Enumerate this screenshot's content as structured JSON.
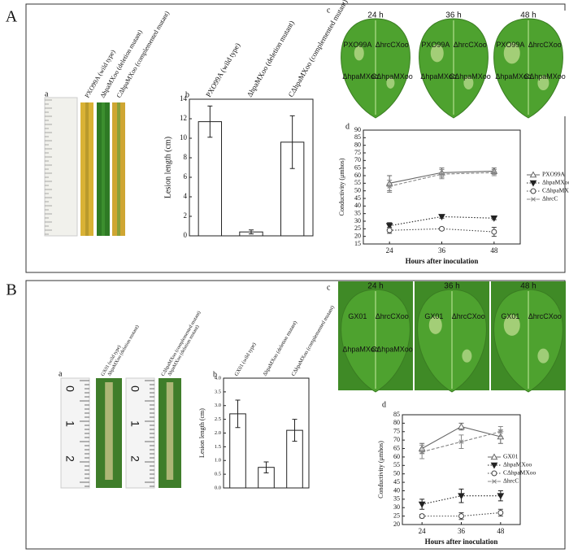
{
  "figure": {
    "panels": [
      {
        "label": "A",
        "photo_a": {
          "label": "a",
          "strains": [
            "PXO99A (wild type)",
            "ΔhpaMXoo (deletion mutant)",
            "CΔhpaMXoo (complemented mutant)"
          ]
        },
        "photo_c": {
          "label": "c",
          "times": [
            "24 h",
            "36 h",
            "48 h"
          ],
          "sites": [
            "PXO99A",
            "ΔhrcCXoo",
            "ΔhpaMXoo",
            "CΔhpaMXoo"
          ]
        }
      },
      {
        "label": "B",
        "photo_a": {
          "label": "a",
          "strains": [
            "GX01 (wild type)",
            "ΔhpaMXoo (deletion mutant)",
            "CΔhpaMXoo (complemented mutant)"
          ],
          "ruler": [
            "0",
            "1",
            "2"
          ]
        },
        "photo_c": {
          "label": "c",
          "times": [
            "24 h",
            "36 h",
            "48 h"
          ],
          "sites": [
            "GX01",
            "ΔhrcCXoo",
            "ΔhpaMXoo",
            "CΔhpaMXoo"
          ]
        }
      }
    ]
  },
  "chart_data": [
    {
      "type": "bar",
      "label": "b",
      "categories": [
        "PXO99A (wild type)",
        "ΔhpaMXoo (deletion mutant)",
        "CΔhpaMXoo (complemented mutant)"
      ],
      "values": [
        11.7,
        0.4,
        9.6
      ],
      "errors": [
        1.6,
        0.2,
        2.7
      ],
      "color": "#ffffff",
      "ylabel": "Lesion length (cm)",
      "ylim": [
        0,
        14
      ],
      "yticks": [
        0,
        2,
        4,
        6,
        8,
        10,
        12,
        14
      ]
    },
    {
      "type": "line",
      "label": "d",
      "xlabel": "Hours after inoculation",
      "ylabel": "Conductivity (μmhos)",
      "x": [
        24,
        36,
        48
      ],
      "xlim": [
        18,
        54
      ],
      "xticks": [
        24,
        36,
        48
      ],
      "ylim": [
        15,
        90
      ],
      "yticks": [
        15,
        20,
        25,
        30,
        35,
        40,
        45,
        50,
        55,
        60,
        65,
        70,
        75,
        80,
        85,
        90
      ],
      "legend": "right",
      "series": [
        {
          "name": "PXO99A",
          "color": "#666666",
          "marker": "triangle-open",
          "dash": "solid",
          "values": [
            55,
            62,
            63
          ],
          "errors": [
            5,
            3,
            2
          ]
        },
        {
          "name": "ΔhpaMXoo",
          "color": "#222222",
          "marker": "triangle-down",
          "dash": "dotted",
          "values": [
            27,
            33,
            32
          ],
          "errors": [
            2,
            1,
            1
          ]
        },
        {
          "name": "CΔhpaMXoo",
          "color": "#444444",
          "marker": "circle-open",
          "dash": "dotted",
          "values": [
            24,
            25,
            23
          ],
          "errors": [
            2,
            1,
            3
          ]
        },
        {
          "name": "ΔhrcC",
          "color": "#888888",
          "marker": "star",
          "dash": "dashed",
          "values": [
            53,
            61,
            62
          ],
          "errors": [
            4,
            3,
            2
          ]
        }
      ]
    },
    {
      "type": "bar",
      "label": "b",
      "categories": [
        "GX01 (wild type)",
        "ΔhpaMXoo (deletion mutant)",
        "CΔhpaMXoo (complemented mutant)"
      ],
      "values": [
        2.7,
        0.75,
        2.1
      ],
      "errors": [
        0.5,
        0.2,
        0.4
      ],
      "color": "#ffffff",
      "ylabel": "Lesion length (cm)",
      "ylim": [
        0,
        4
      ],
      "yticks": [
        {
          "value": 0,
          "label": "0.0"
        },
        0.5,
        {
          "value": 1,
          "label": "1.0"
        },
        1.5,
        {
          "value": 2,
          "label": "2.0"
        },
        2.5,
        {
          "value": 3,
          "label": "3.0"
        },
        3.5,
        {
          "value": 4,
          "label": "4.0"
        }
      ]
    },
    {
      "type": "line",
      "label": "d",
      "xlabel": "Hours after inoculation",
      "ylabel": "Conductivity (μmhos)",
      "x": [
        24,
        36,
        48
      ],
      "xlim": [
        18,
        54
      ],
      "xticks": [
        24,
        36,
        48
      ],
      "ylim": [
        20,
        85
      ],
      "yticks": [
        20,
        25,
        30,
        35,
        40,
        45,
        50,
        55,
        60,
        65,
        70,
        75,
        80,
        85
      ],
      "legend": "right",
      "series": [
        {
          "name": "GX01",
          "color": "#666666",
          "marker": "triangle-open",
          "dash": "solid",
          "values": [
            65,
            78,
            72
          ],
          "errors": [
            3,
            2,
            4
          ]
        },
        {
          "name": "ΔhpaMXoo",
          "color": "#222222",
          "marker": "triangle-down",
          "dash": "dotted",
          "values": [
            32,
            37,
            37
          ],
          "errors": [
            3,
            4,
            3
          ]
        },
        {
          "name": "CΔhpaMXoo",
          "color": "#444444",
          "marker": "circle-open",
          "dash": "dotted",
          "values": [
            25,
            25,
            27
          ],
          "errors": [
            1,
            2,
            2
          ]
        },
        {
          "name": "ΔhrcC",
          "color": "#888888",
          "marker": "star",
          "dash": "dashed",
          "values": [
            63,
            69,
            75
          ],
          "errors": [
            4,
            4,
            3
          ]
        }
      ]
    }
  ]
}
